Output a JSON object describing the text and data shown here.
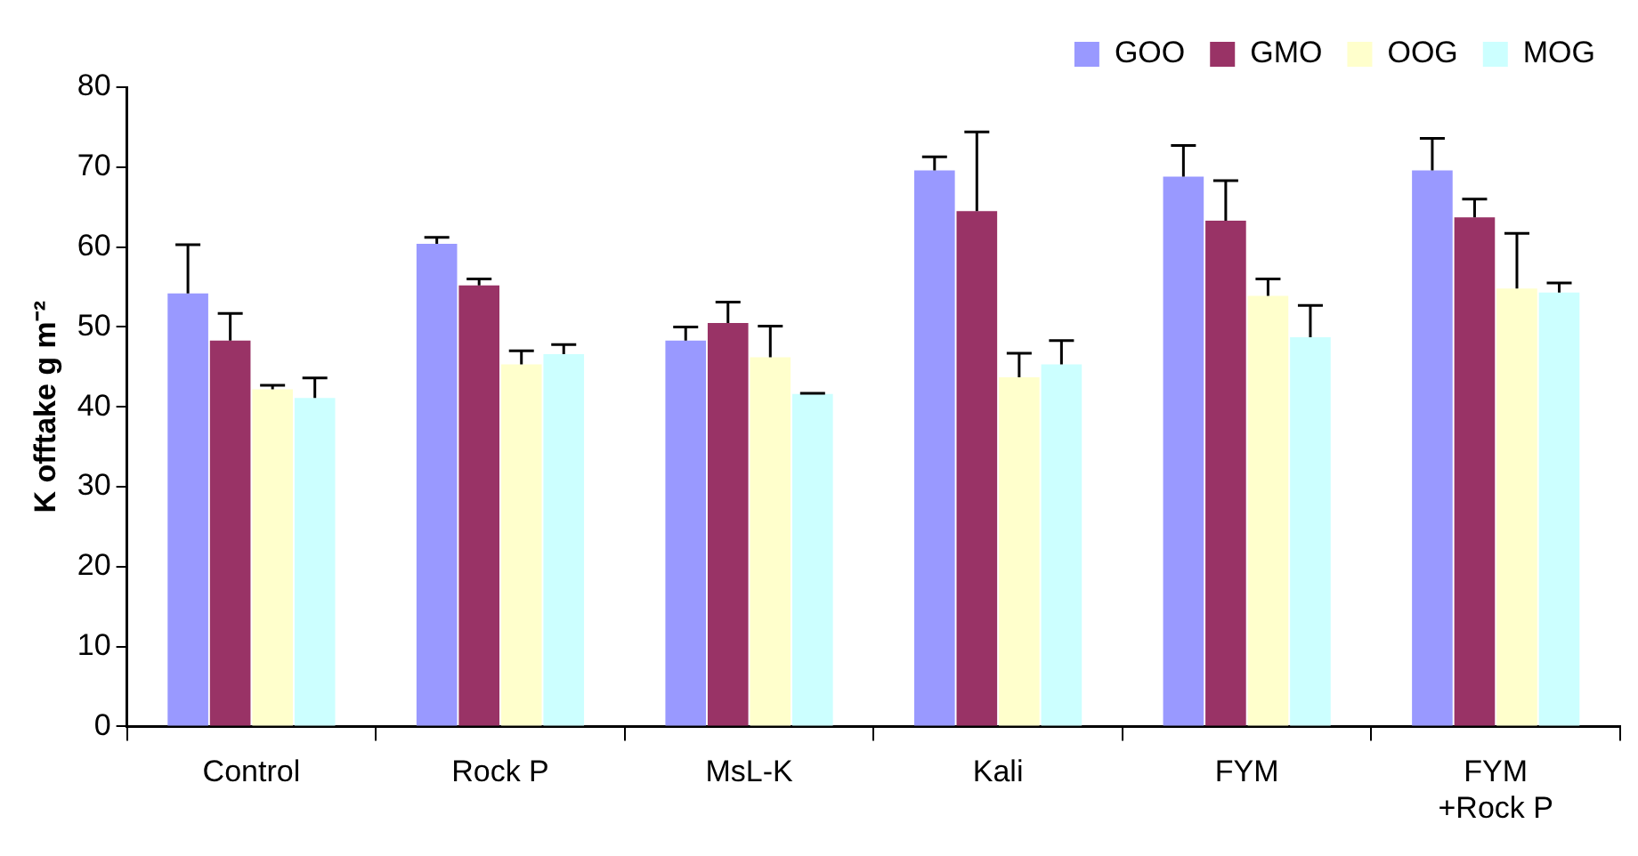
{
  "chart_data": {
    "type": "bar",
    "ylabel": "K offtake g m⁻²",
    "categories": [
      "Control",
      "Rock P",
      "MsL-K",
      "Kali",
      "FYM",
      "FYM\n+Rock P"
    ],
    "series": [
      {
        "name": "GOO",
        "color": "#9999ff",
        "values": [
          54.2,
          60.4,
          48.3,
          69.6,
          68.8,
          69.6
        ],
        "errors": [
          [
            54.2,
            60.3
          ],
          [
            60.4,
            61.2
          ],
          [
            48.3,
            50.0
          ],
          [
            69.6,
            71.3
          ],
          [
            68.8,
            72.7
          ],
          [
            69.6,
            73.6
          ]
        ]
      },
      {
        "name": "GMO",
        "color": "#993366",
        "values": [
          48.3,
          55.2,
          50.5,
          64.5,
          63.3,
          63.7
        ],
        "errors": [
          [
            48.3,
            51.7
          ],
          [
            55.2,
            56.0
          ],
          [
            50.5,
            53.1
          ],
          [
            64.5,
            74.4
          ],
          [
            63.3,
            68.3
          ],
          [
            63.7,
            66.0
          ]
        ]
      },
      {
        "name": "OOG",
        "color": "#ffffcc",
        "values": [
          42.2,
          45.3,
          46.2,
          43.7,
          53.9,
          54.8
        ],
        "errors": [
          [
            42.2,
            42.7
          ],
          [
            45.3,
            47.0
          ],
          [
            46.2,
            50.1
          ],
          [
            43.7,
            46.7
          ],
          [
            53.9,
            56.0
          ],
          [
            54.8,
            61.7
          ]
        ]
      },
      {
        "name": "MOG",
        "color": "#ccffff",
        "values": [
          41.1,
          46.6,
          41.6,
          45.3,
          48.7,
          54.3
        ],
        "errors": [
          [
            41.1,
            43.6
          ],
          [
            46.6,
            47.8
          ],
          [
            41.6,
            41.7
          ],
          [
            45.3,
            48.3
          ],
          [
            48.7,
            52.7
          ],
          [
            54.3,
            55.5
          ]
        ]
      }
    ],
    "ylim": [
      0,
      80
    ],
    "yticks": [
      0,
      10,
      20,
      30,
      40,
      50,
      60,
      70,
      80
    ],
    "grid": false,
    "legend": "top right"
  }
}
